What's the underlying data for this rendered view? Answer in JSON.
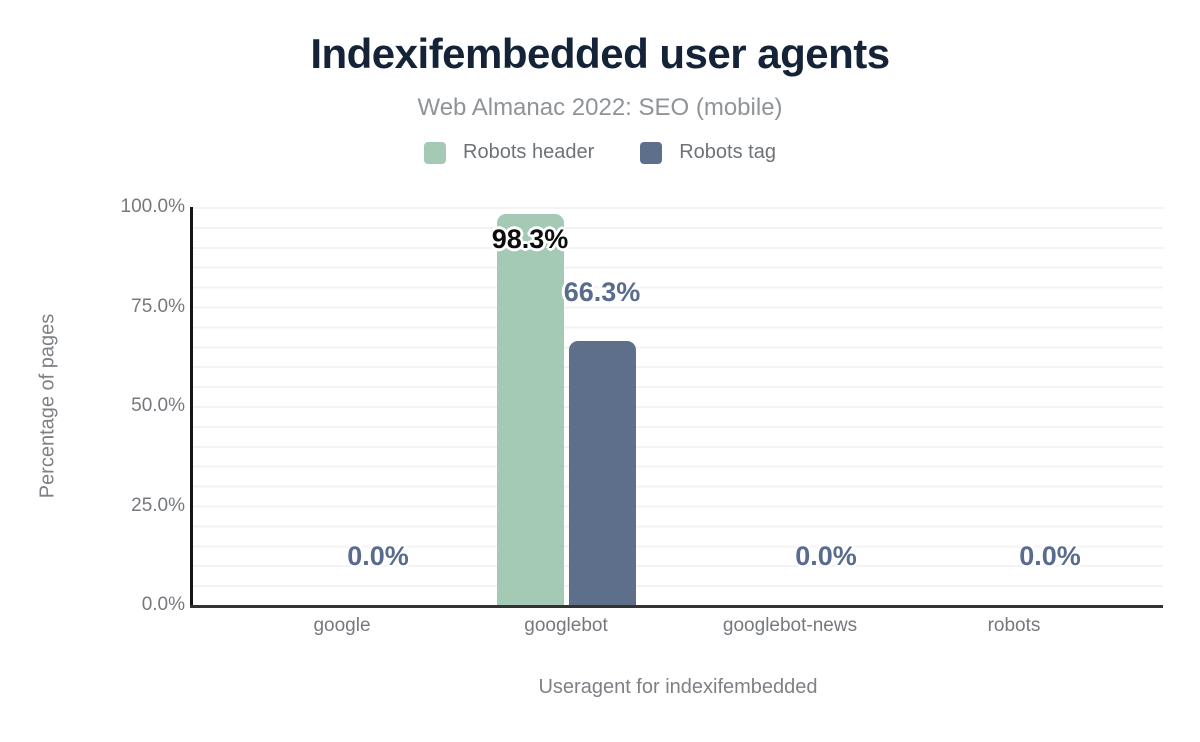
{
  "chart_data": {
    "type": "bar",
    "title": "Indexifembedded user agents",
    "subtitle": "Web Almanac 2022: SEO (mobile)",
    "xlabel": "Useragent for indexifembedded",
    "ylabel": "Percentage of pages",
    "categories": [
      "google",
      "googlebot",
      "googlebot-news",
      "robots"
    ],
    "series": [
      {
        "name": "Robots header",
        "color": "#a4c9b5",
        "label_color": "#0d0d0d",
        "values": [
          0.0,
          98.3,
          0.0,
          0.0
        ]
      },
      {
        "name": "Robots tag",
        "color": "#5e6f8c",
        "label_color": "#586c8e",
        "values": [
          0.0,
          66.3,
          0.0,
          0.0
        ]
      }
    ],
    "value_labels": [
      {
        "category": 0,
        "series": 1,
        "text": "0.0%",
        "placement": "above"
      },
      {
        "category": 1,
        "series": 0,
        "text": "98.3%",
        "placement": "inside-top"
      },
      {
        "category": 1,
        "series": 1,
        "text": "66.3%",
        "placement": "above"
      },
      {
        "category": 2,
        "series": 1,
        "text": "0.0%",
        "placement": "above"
      },
      {
        "category": 3,
        "series": 1,
        "text": "0.0%",
        "placement": "above"
      }
    ],
    "ylim": [
      0,
      100
    ],
    "yticks": [
      {
        "value": 0,
        "label": "0.0%"
      },
      {
        "value": 25,
        "label": "25.0%"
      },
      {
        "value": 50,
        "label": "50.0%"
      },
      {
        "value": 75,
        "label": "75.0%"
      },
      {
        "value": 100,
        "label": "100.0%"
      }
    ],
    "grid": {
      "on": true,
      "minor_step_percent": 5
    },
    "legend_position": "top"
  },
  "colors": {
    "title": "#152339",
    "subtitle": "#8f9499",
    "tick_text": "#75797e",
    "axis_title_text": "#7d8186",
    "legend_text": "#6e7378",
    "gridline": "#f3f3f3",
    "axis_line": "#222222",
    "background": "#ffffff"
  }
}
